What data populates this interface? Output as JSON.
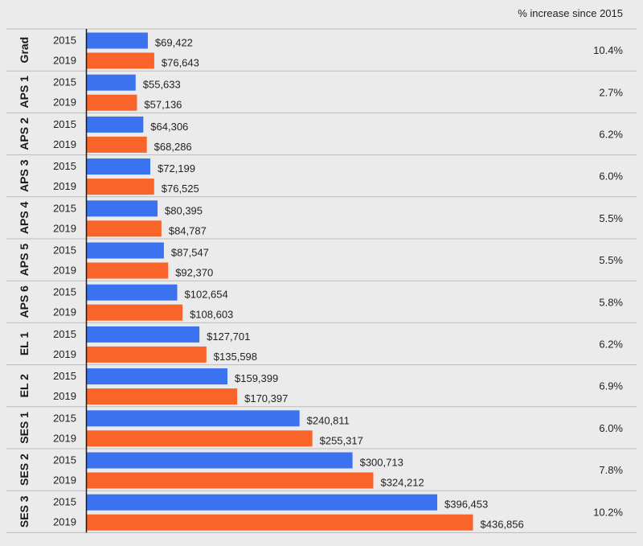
{
  "chart_data": {
    "type": "bar",
    "orientation": "horizontal",
    "header": "% increase since 2015",
    "categories": [
      "Grad",
      "APS 1",
      "APS 2",
      "APS 3",
      "APS 4",
      "APS 5",
      "APS 6",
      "EL 1",
      "EL 2",
      "SES 1",
      "SES 2",
      "SES 3"
    ],
    "series": [
      {
        "name": "2015",
        "color": "#3a72f0",
        "values": [
          69422,
          55633,
          64306,
          72199,
          80395,
          87547,
          102654,
          127701,
          159399,
          240811,
          300713,
          396453
        ],
        "labels": [
          "$69,422",
          "$55,633",
          "$64,306",
          "$72,199",
          "$80,395",
          "$87,547",
          "$102,654",
          "$127,701",
          "$159,399",
          "$240,811",
          "$300,713",
          "$396,453"
        ]
      },
      {
        "name": "2019",
        "color": "#f8642a",
        "values": [
          76643,
          57136,
          68286,
          76525,
          84787,
          92370,
          108603,
          135598,
          170397,
          255317,
          324212,
          436856
        ],
        "labels": [
          "$76,643",
          "$57,136",
          "$68,286",
          "$76,525",
          "$84,787",
          "$92,370",
          "$108,603",
          "$135,598",
          "$170,397",
          "$255,317",
          "$324,212",
          "$436,856"
        ]
      }
    ],
    "pct_increase": [
      "10.4%",
      "2.7%",
      "6.2%",
      "6.0%",
      "5.5%",
      "5.5%",
      "5.8%",
      "6.2%",
      "6.9%",
      "6.0%",
      "7.8%",
      "10.2%"
    ],
    "xlim": [
      0,
      436856
    ]
  }
}
